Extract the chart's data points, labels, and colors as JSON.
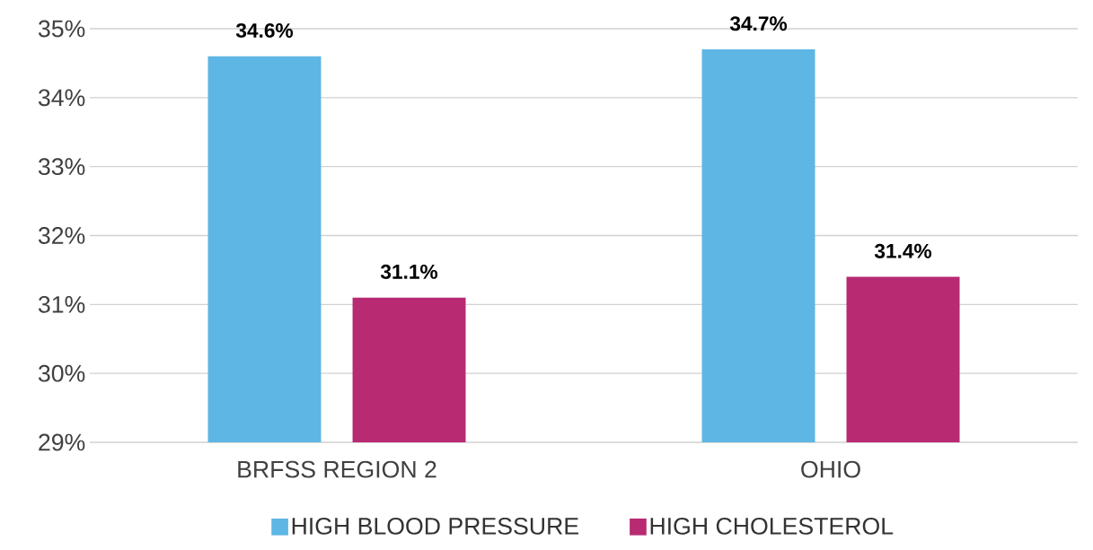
{
  "chart_data": {
    "type": "bar",
    "categories": [
      "BRFSS REGION 2",
      "OHIO"
    ],
    "series": [
      {
        "name": "HIGH BLOOD PRESSURE",
        "color": "#5eb6e4",
        "values": [
          34.6,
          34.7
        ],
        "value_labels": [
          "34.6%",
          "34.7%"
        ]
      },
      {
        "name": "HIGH CHOLESTEROL",
        "color": "#b82a72",
        "values": [
          31.1,
          31.4
        ],
        "value_labels": [
          "31.1%",
          "31.4%"
        ]
      }
    ],
    "ylim": [
      29,
      35
    ],
    "yticks": [
      {
        "value": 29,
        "label": "29%"
      },
      {
        "value": 30,
        "label": "30%"
      },
      {
        "value": 31,
        "label": "31%"
      },
      {
        "value": 32,
        "label": "32%"
      },
      {
        "value": 33,
        "label": "33%"
      },
      {
        "value": 34,
        "label": "34%"
      },
      {
        "value": 35,
        "label": "35%"
      }
    ],
    "grid": "y",
    "legend": "bottom"
  }
}
